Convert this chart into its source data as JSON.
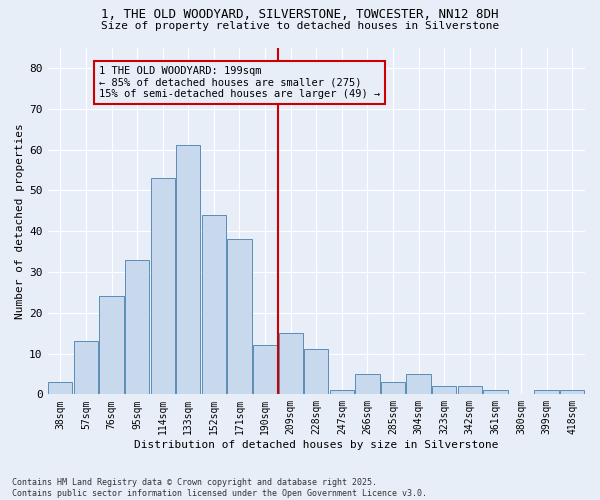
{
  "title1": "1, THE OLD WOODYARD, SILVERSTONE, TOWCESTER, NN12 8DH",
  "title2": "Size of property relative to detached houses in Silverstone",
  "xlabel": "Distribution of detached houses by size in Silverstone",
  "ylabel": "Number of detached properties",
  "categories": [
    "38sqm",
    "57sqm",
    "76sqm",
    "95sqm",
    "114sqm",
    "133sqm",
    "152sqm",
    "171sqm",
    "190sqm",
    "209sqm",
    "228sqm",
    "247sqm",
    "266sqm",
    "285sqm",
    "304sqm",
    "323sqm",
    "342sqm",
    "361sqm",
    "380sqm",
    "399sqm",
    "418sqm"
  ],
  "values": [
    3,
    13,
    24,
    33,
    53,
    61,
    44,
    38,
    12,
    15,
    11,
    1,
    5,
    3,
    5,
    2,
    2,
    1,
    0,
    1,
    1
  ],
  "bar_color": "#c8d9ed",
  "bar_edge_color": "#5b8db8",
  "vline_color": "#cc0000",
  "annotation_text": "1 THE OLD WOODYARD: 199sqm\n← 85% of detached houses are smaller (275)\n15% of semi-detached houses are larger (49) →",
  "annotation_box_color": "#cc0000",
  "ylim": [
    0,
    85
  ],
  "yticks": [
    0,
    10,
    20,
    30,
    40,
    50,
    60,
    70,
    80
  ],
  "background_color": "#e8eef8",
  "footer": "Contains HM Land Registry data © Crown copyright and database right 2025.\nContains public sector information licensed under the Open Government Licence v3.0.",
  "grid_color": "#ffffff",
  "vline_index": 8.5
}
